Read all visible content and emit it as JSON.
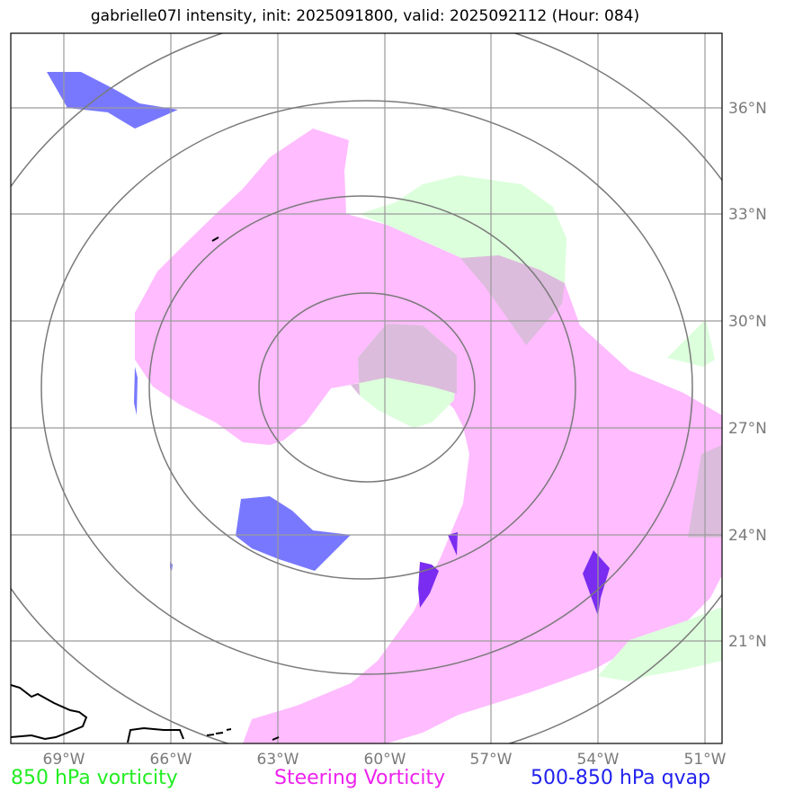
{
  "title": "gabrielle07l intensity, init: 2025091800, valid: 2025092112 (Hour: 084)",
  "lon_labels": [
    "69°W",
    "66°W",
    "63°W",
    "60°W",
    "57°W",
    "54°W",
    "51°W"
  ],
  "lat_labels": [
    "36°N",
    "33°N",
    "30°N",
    "27°N",
    "24°N",
    "21°N"
  ],
  "legend": [
    {
      "label": "850 hPa vorticity",
      "color": "#22ee22"
    },
    {
      "label": "Steering Vorticity",
      "color": "#ee22ee"
    },
    {
      "label": "500-850 hPa qvap",
      "color": "#2222ee"
    }
  ],
  "colors": {
    "steering": "#ffbcff",
    "vort850": "#dcffdc",
    "overlap": "#dcbcdc",
    "qvap": "#7878ff",
    "qvap_dark": "#7a2cf0",
    "grid": "#9a9a9a",
    "rings": "#7a7a7a"
  },
  "storm_center": {
    "lon": -60,
    "lat": 28.2
  }
}
